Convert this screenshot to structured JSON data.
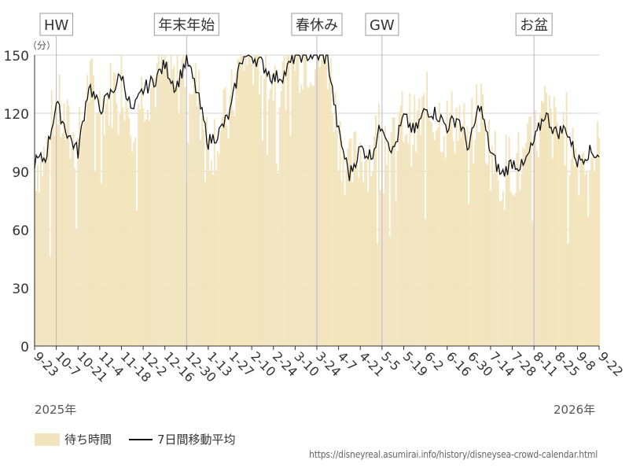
{
  "chart_data": {
    "type": "bar",
    "yunit": "（分）",
    "ylim": [
      0,
      150
    ],
    "yticks": [
      0,
      30,
      60,
      90,
      120,
      150
    ],
    "grid": true,
    "start_date": "2025-09-23",
    "end_date": "2026-09-22",
    "xtick_labels": [
      "9-23",
      "10-7",
      "10-21",
      "11-4",
      "11-18",
      "12-2",
      "12-16",
      "12-30",
      "1-13",
      "1-27",
      "2-10",
      "2-24",
      "3-10",
      "3-24",
      "4-7",
      "4-21",
      "5-5",
      "5-19",
      "6-2",
      "6-16",
      "6-30",
      "7-14",
      "7-28",
      "8-11",
      "8-25",
      "9-8",
      "9-22"
    ],
    "year_labels": {
      "start": "2025年",
      "end": "2026年"
    },
    "holidays": [
      {
        "label": "HW",
        "date": "2025-10-07"
      },
      {
        "label": "年末年始",
        "date": "2025-12-30"
      },
      {
        "label": "春休み",
        "date": "2026-03-24"
      },
      {
        "label": "GW",
        "date": "2026-05-05"
      },
      {
        "label": "お盆",
        "date": "2026-08-11"
      }
    ],
    "series": [
      {
        "name": "待ち時間",
        "type": "bar",
        "color": "#f2e4bd"
      },
      {
        "name": "7日間移動平均",
        "type": "line",
        "color": "#111111"
      }
    ],
    "moving_average_keypoints": [
      [
        "2025-09-23",
        95
      ],
      [
        "2025-09-30",
        97
      ],
      [
        "2025-10-07",
        125
      ],
      [
        "2025-10-14",
        110
      ],
      [
        "2025-10-21",
        100
      ],
      [
        "2025-10-28",
        135
      ],
      [
        "2025-11-04",
        122
      ],
      [
        "2025-11-11",
        130
      ],
      [
        "2025-11-18",
        140
      ],
      [
        "2025-11-25",
        120
      ],
      [
        "2025-12-02",
        132
      ],
      [
        "2025-12-09",
        137
      ],
      [
        "2025-12-16",
        145
      ],
      [
        "2025-12-23",
        133
      ],
      [
        "2025-12-30",
        148
      ],
      [
        "2026-01-06",
        130
      ],
      [
        "2026-01-13",
        105
      ],
      [
        "2026-01-20",
        110
      ],
      [
        "2026-01-27",
        120
      ],
      [
        "2026-02-03",
        148
      ],
      [
        "2026-02-10",
        150
      ],
      [
        "2026-02-17",
        145
      ],
      [
        "2026-02-24",
        138
      ],
      [
        "2026-03-03",
        140
      ],
      [
        "2026-03-10",
        150
      ],
      [
        "2026-03-17",
        150
      ],
      [
        "2026-03-24",
        150
      ],
      [
        "2026-03-31",
        148
      ],
      [
        "2026-04-07",
        110
      ],
      [
        "2026-04-14",
        88
      ],
      [
        "2026-04-21",
        102
      ],
      [
        "2026-04-28",
        98
      ],
      [
        "2026-05-05",
        115
      ],
      [
        "2026-05-12",
        100
      ],
      [
        "2026-05-19",
        118
      ],
      [
        "2026-05-26",
        110
      ],
      [
        "2026-06-02",
        122
      ],
      [
        "2026-06-09",
        120
      ],
      [
        "2026-06-16",
        113
      ],
      [
        "2026-06-23",
        118
      ],
      [
        "2026-06-30",
        102
      ],
      [
        "2026-07-07",
        125
      ],
      [
        "2026-07-14",
        100
      ],
      [
        "2026-07-21",
        88
      ],
      [
        "2026-07-28",
        95
      ],
      [
        "2026-08-04",
        92
      ],
      [
        "2026-08-11",
        105
      ],
      [
        "2026-08-18",
        120
      ],
      [
        "2026-08-25",
        110
      ],
      [
        "2026-09-01",
        112
      ],
      [
        "2026-09-08",
        95
      ],
      [
        "2026-09-15",
        100
      ],
      [
        "2026-09-22",
        99
      ]
    ]
  },
  "legend": {
    "bar_label": "待ち時間",
    "line_label": "7日間移動平均"
  },
  "source_url": "https://disneyreal.asumirai.info/history/disneysea-crowd-calendar.html"
}
